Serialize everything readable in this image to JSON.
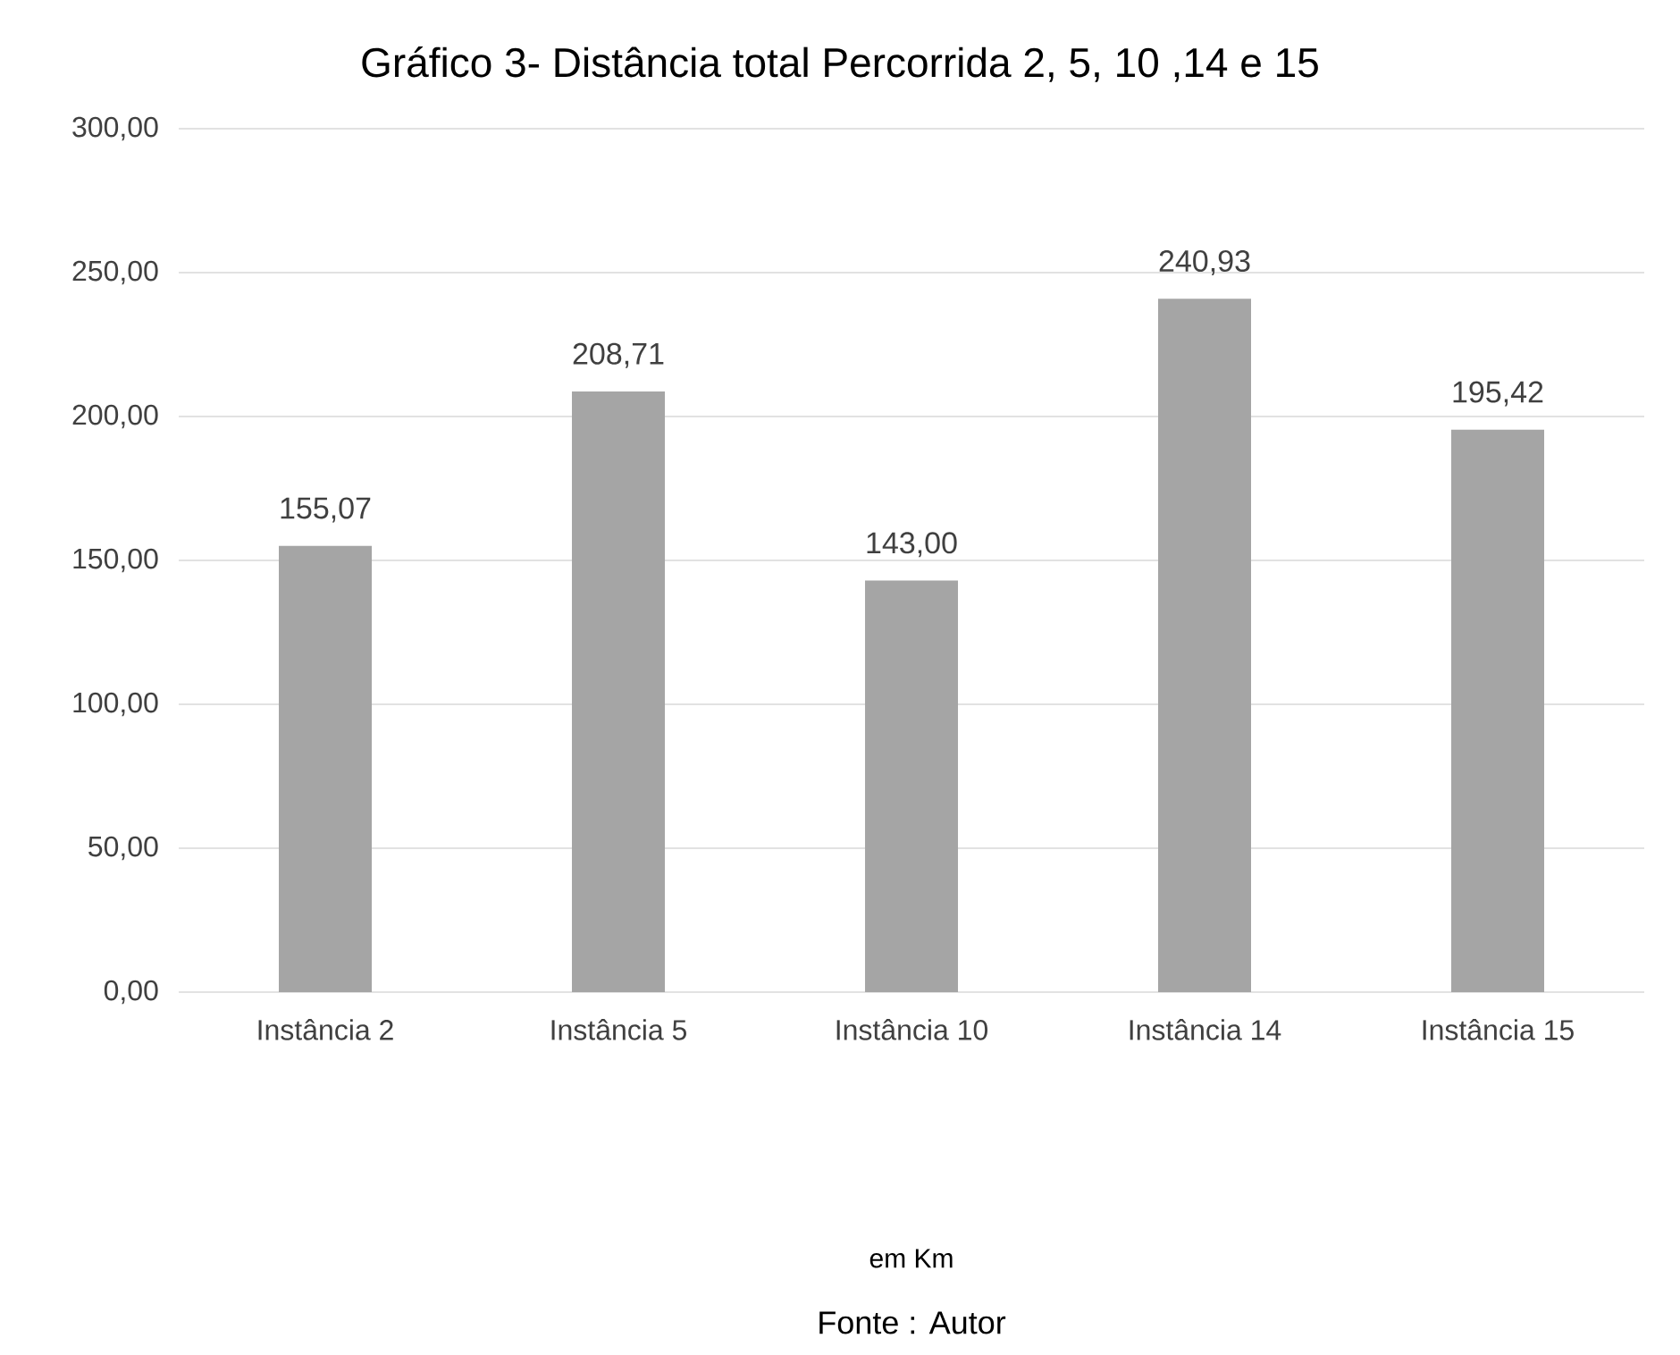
{
  "chart_data": {
    "type": "bar",
    "title": "Gráfico 3- Distância total Percorrida 2, 5, 10 ,14 e 15",
    "categories": [
      "Instância 2",
      "Instância 5",
      "Instância 10",
      "Instância 14",
      "Instância 15"
    ],
    "values": [
      155.07,
      208.71,
      143.0,
      240.93,
      195.42
    ],
    "value_labels": [
      "155,07",
      "208,71",
      "143,00",
      "240,93",
      "195,42"
    ],
    "color": "#a5a5a5",
    "ylim": [
      0,
      300
    ],
    "yticks": [
      {
        "value": 0,
        "label": "0,00"
      },
      {
        "value": 50,
        "label": "50,00"
      },
      {
        "value": 100,
        "label": "100,00"
      },
      {
        "value": 150,
        "label": "150,00"
      },
      {
        "value": 200,
        "label": "200,00"
      },
      {
        "value": 250,
        "label": "250,00"
      },
      {
        "value": 300,
        "label": "300,00"
      }
    ],
    "grid": "y",
    "annotations": [
      "em Km",
      "Fonte : Autor"
    ]
  }
}
